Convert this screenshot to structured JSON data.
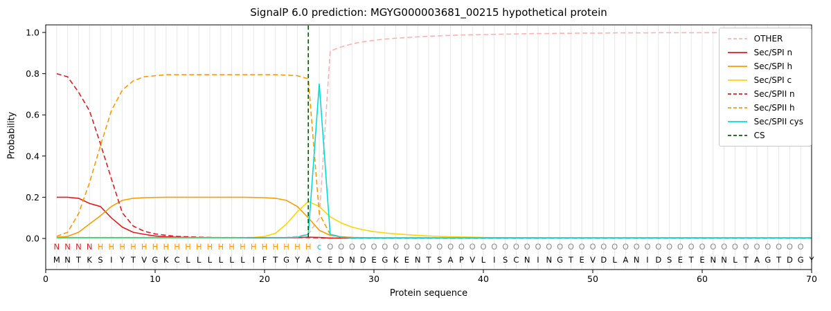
{
  "figure": {
    "title": "SignalP 6.0 prediction: MGYG000003681_00215 hypothetical protein",
    "xlabel": "Protein sequence",
    "ylabel": "Probability"
  },
  "chart_data": {
    "type": "line",
    "xlim": [
      0,
      70
    ],
    "ylim": [
      0,
      1.0
    ],
    "x_ticks": [
      0,
      10,
      20,
      30,
      40,
      50,
      60,
      70
    ],
    "y_ticks": [
      "0.0",
      "0.2",
      "0.4",
      "0.6",
      "0.8",
      "1.0"
    ],
    "grid": "vertical-line-per-residue",
    "legend_position": "upper-right",
    "cs_position": 24,
    "cs_color": "#006400",
    "sequence": "MNTKSIYTVGKCLLLLLLIFTGYACEDNDEGKENTSAPVLISCNINGTEVDLANIDSETENNLTAGTDGY",
    "region_labels": "NNNNHHHHHHHHHHHHHHHHHHHHcOOOOOOOOOOOOOOOOOOOOOOOOOOOOOOOOOOOOOOOOOOOO",
    "region_colors": {
      "N": "#e41a1c",
      "H": "#ff9900",
      "c": "#00cccc",
      "O": "#8c8c8c"
    },
    "series": [
      {
        "key": "other",
        "name": "OTHER",
        "color": "#ffb1b1",
        "dash": true,
        "values": [
          0.005,
          0.005,
          0.005,
          0.005,
          0.005,
          0.005,
          0.005,
          0.005,
          0.005,
          0.005,
          0.005,
          0.005,
          0.005,
          0.005,
          0.005,
          0.005,
          0.005,
          0.005,
          0.005,
          0.005,
          0.005,
          0.005,
          0.01,
          0.02,
          0.1,
          0.91,
          0.93,
          0.945,
          0.955,
          0.962,
          0.968,
          0.972,
          0.976,
          0.979,
          0.982,
          0.984,
          0.986,
          0.988,
          0.989,
          0.99,
          0.991,
          0.992,
          0.993,
          0.994,
          0.995,
          0.995,
          0.996,
          0.996,
          0.997,
          0.997,
          0.997,
          0.998,
          0.998,
          0.998,
          0.998,
          0.999,
          0.999,
          0.999,
          0.999,
          0.999,
          0.999,
          0.999,
          1.0,
          1.0,
          1.0,
          1.0,
          1.0,
          1.0,
          1.0,
          1.0
        ]
      },
      {
        "key": "spi-n",
        "name": "Sec/SPI n",
        "color": "#e41a1c",
        "dash": false,
        "values": [
          0.2,
          0.2,
          0.195,
          0.17,
          0.155,
          0.1,
          0.055,
          0.03,
          0.02,
          0.012,
          0.008,
          0.006,
          0.005,
          0.004,
          0.004,
          0.003,
          0.003,
          0.003,
          0.003,
          0.003,
          0.003,
          0.003,
          0.004,
          0.006,
          0.005,
          0.002,
          0.002,
          0.002,
          0.002,
          0.002,
          0.002,
          0.002,
          0.002,
          0.002,
          0.002,
          0.002,
          0.002,
          0.002,
          0.002,
          0.002,
          0.002,
          0.002,
          0.002,
          0.002,
          0.002,
          0.002,
          0.002,
          0.002,
          0.002,
          0.002,
          0.002,
          0.002,
          0.002,
          0.002,
          0.002,
          0.002,
          0.002,
          0.002,
          0.002,
          0.002,
          0.002,
          0.002,
          0.002,
          0.002,
          0.002,
          0.002,
          0.002,
          0.002,
          0.002,
          0.002
        ]
      },
      {
        "key": "spi-h",
        "name": "Sec/SPI h",
        "color": "#ff9900",
        "dash": false,
        "values": [
          0.005,
          0.01,
          0.03,
          0.07,
          0.11,
          0.155,
          0.185,
          0.195,
          0.198,
          0.199,
          0.2,
          0.2,
          0.2,
          0.2,
          0.2,
          0.2,
          0.2,
          0.2,
          0.199,
          0.198,
          0.195,
          0.185,
          0.155,
          0.1,
          0.04,
          0.015,
          0.008,
          0.005,
          0.004,
          0.003,
          0.002,
          0.002,
          0.002,
          0.002,
          0.002,
          0.002,
          0.002,
          0.002,
          0.002,
          0.002,
          0.002,
          0.002,
          0.002,
          0.002,
          0.002,
          0.002,
          0.002,
          0.002,
          0.002,
          0.002,
          0.002,
          0.002,
          0.002,
          0.002,
          0.002,
          0.002,
          0.002,
          0.002,
          0.002,
          0.002,
          0.002,
          0.002,
          0.002,
          0.002,
          0.002,
          0.002,
          0.002,
          0.002,
          0.002,
          0.002
        ]
      },
      {
        "key": "spi-c",
        "name": "Sec/SPI c",
        "color": "#ffd400",
        "dash": false,
        "values": [
          0.002,
          0.002,
          0.002,
          0.002,
          0.002,
          0.002,
          0.002,
          0.002,
          0.002,
          0.002,
          0.002,
          0.002,
          0.002,
          0.002,
          0.002,
          0.002,
          0.002,
          0.003,
          0.005,
          0.01,
          0.025,
          0.07,
          0.13,
          0.18,
          0.155,
          0.105,
          0.075,
          0.055,
          0.042,
          0.033,
          0.027,
          0.022,
          0.018,
          0.015,
          0.012,
          0.01,
          0.008,
          0.007,
          0.006,
          0.005,
          0.004,
          0.004,
          0.003,
          0.003,
          0.003,
          0.002,
          0.002,
          0.002,
          0.002,
          0.002,
          0.002,
          0.002,
          0.002,
          0.002,
          0.002,
          0.002,
          0.002,
          0.002,
          0.002,
          0.002,
          0.002,
          0.002,
          0.002,
          0.002,
          0.002,
          0.002,
          0.002,
          0.002,
          0.002,
          0.002
        ]
      },
      {
        "key": "spii-n",
        "name": "Sec/SPII n",
        "color": "#e41a1c",
        "dash": true,
        "values": [
          0.8,
          0.785,
          0.71,
          0.62,
          0.46,
          0.29,
          0.125,
          0.06,
          0.035,
          0.022,
          0.015,
          0.01,
          0.008,
          0.006,
          0.005,
          0.004,
          0.004,
          0.004,
          0.004,
          0.004,
          0.004,
          0.004,
          0.004,
          0.004,
          0.003,
          0.002,
          0.002,
          0.002,
          0.002,
          0.002,
          0.002,
          0.002,
          0.002,
          0.002,
          0.002,
          0.002,
          0.002,
          0.002,
          0.002,
          0.002,
          0.002,
          0.002,
          0.002,
          0.002,
          0.002,
          0.002,
          0.002,
          0.002,
          0.002,
          0.002,
          0.002,
          0.002,
          0.002,
          0.002,
          0.002,
          0.002,
          0.002,
          0.002,
          0.002,
          0.002,
          0.002,
          0.002,
          0.002,
          0.002,
          0.002,
          0.002,
          0.002,
          0.002,
          0.002,
          0.002
        ]
      },
      {
        "key": "spii-h",
        "name": "Sec/SPII h",
        "color": "#ff9900",
        "dash": true,
        "values": [
          0.01,
          0.03,
          0.12,
          0.27,
          0.45,
          0.62,
          0.72,
          0.765,
          0.785,
          0.79,
          0.795,
          0.795,
          0.795,
          0.795,
          0.795,
          0.795,
          0.795,
          0.795,
          0.795,
          0.795,
          0.795,
          0.793,
          0.79,
          0.775,
          0.12,
          0.02,
          0.008,
          0.005,
          0.003,
          0.003,
          0.003,
          0.003,
          0.003,
          0.003,
          0.003,
          0.003,
          0.003,
          0.003,
          0.003,
          0.003,
          0.003,
          0.003,
          0.003,
          0.003,
          0.003,
          0.003,
          0.003,
          0.003,
          0.003,
          0.003,
          0.003,
          0.003,
          0.003,
          0.003,
          0.003,
          0.003,
          0.003,
          0.003,
          0.003,
          0.003,
          0.003,
          0.003,
          0.003,
          0.003,
          0.003,
          0.003,
          0.003,
          0.003,
          0.003,
          0.003
        ]
      },
      {
        "key": "spii-cys",
        "name": "Sec/SPII cys",
        "color": "#00dcdc",
        "dash": false,
        "values": [
          0.004,
          0.004,
          0.004,
          0.004,
          0.004,
          0.004,
          0.004,
          0.004,
          0.004,
          0.004,
          0.004,
          0.004,
          0.004,
          0.004,
          0.004,
          0.004,
          0.004,
          0.004,
          0.004,
          0.004,
          0.004,
          0.004,
          0.006,
          0.02,
          0.75,
          0.02,
          0.006,
          0.003,
          0.003,
          0.003,
          0.003,
          0.003,
          0.003,
          0.003,
          0.003,
          0.003,
          0.003,
          0.003,
          0.003,
          0.003,
          0.003,
          0.003,
          0.003,
          0.003,
          0.003,
          0.003,
          0.003,
          0.003,
          0.003,
          0.003,
          0.003,
          0.003,
          0.003,
          0.003,
          0.003,
          0.003,
          0.003,
          0.003,
          0.003,
          0.003,
          0.003,
          0.003,
          0.003,
          0.003,
          0.003,
          0.003,
          0.003,
          0.003,
          0.003,
          0.003
        ]
      }
    ]
  },
  "legend": {
    "items": [
      {
        "label": "OTHER",
        "color": "#ffb1b1",
        "dash": true
      },
      {
        "label": "Sec/SPI n",
        "color": "#e41a1c",
        "dash": false
      },
      {
        "label": "Sec/SPI h",
        "color": "#ff9900",
        "dash": false
      },
      {
        "label": "Sec/SPI c",
        "color": "#ffd400",
        "dash": false
      },
      {
        "label": "Sec/SPII n",
        "color": "#e41a1c",
        "dash": true
      },
      {
        "label": "Sec/SPII h",
        "color": "#ff9900",
        "dash": true
      },
      {
        "label": "Sec/SPII cys",
        "color": "#00dcdc",
        "dash": false
      },
      {
        "label": "CS",
        "color": "#006400",
        "dash": true
      }
    ]
  }
}
